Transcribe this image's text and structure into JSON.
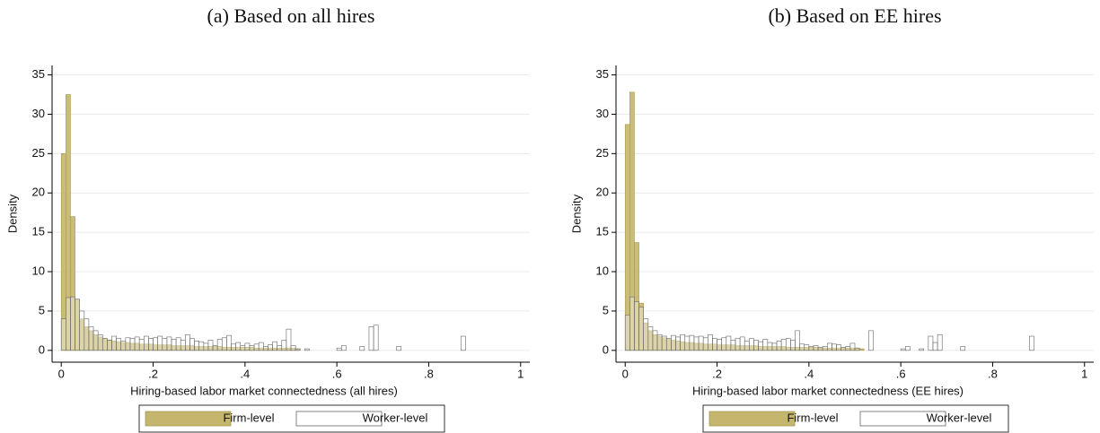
{
  "chart_data": [
    {
      "type": "histogram",
      "title": "(a) Based on all hires",
      "xlabel": "Hiring-based labor market connectedness (all hires)",
      "ylabel": "Density",
      "bins": [
        0,
        0.01,
        0.02,
        0.03,
        0.04,
        0.05,
        0.06,
        0.07,
        0.08,
        0.09,
        0.1,
        0.11,
        0.12,
        0.13,
        0.14,
        0.15,
        0.16,
        0.17,
        0.18,
        0.19,
        0.2,
        0.21,
        0.22,
        0.23,
        0.24,
        0.25,
        0.26,
        0.27,
        0.28,
        0.29,
        0.3,
        0.31,
        0.32,
        0.33,
        0.34,
        0.35,
        0.36,
        0.37,
        0.38,
        0.39,
        0.4,
        0.41,
        0.42,
        0.43,
        0.44,
        0.45,
        0.46,
        0.47,
        0.48,
        0.49,
        0.5,
        0.51,
        0.52,
        0.53,
        0.54,
        0.55,
        0.56,
        0.57,
        0.58,
        0.59,
        0.6,
        0.61,
        0.62,
        0.63,
        0.64,
        0.65,
        0.66,
        0.67,
        0.68,
        0.69,
        0.7,
        0.71,
        0.72,
        0.73,
        0.74,
        0.75,
        0.76,
        0.77,
        0.78,
        0.79,
        0.8,
        0.81,
        0.82,
        0.83,
        0.84,
        0.85,
        0.86,
        0.87,
        0.88,
        0.89,
        0.9
      ],
      "series": [
        {
          "name": "Firm-level",
          "color": "#c4b66c",
          "values": [
            25,
            32.5,
            17,
            6.5,
            4,
            3,
            2.5,
            2,
            1.7,
            1.5,
            1.3,
            1.2,
            1.1,
            1,
            1,
            0.9,
            0.9,
            0.8,
            0.8,
            0.8,
            0.7,
            0.7,
            0.7,
            0.7,
            0.6,
            0.6,
            0.6,
            0.6,
            0.6,
            0.5,
            0.5,
            0.5,
            0.5,
            0.5,
            0.5,
            0.4,
            0.4,
            0.4,
            0.4,
            0.4,
            0.4,
            0.4,
            0.3,
            0.3,
            0.3,
            0.3,
            0.3,
            0.3,
            0.3,
            0.3,
            0.3,
            0.2,
            0,
            0,
            0,
            0,
            0,
            0,
            0,
            0,
            0,
            0,
            0,
            0,
            0,
            0,
            0,
            0,
            0,
            0,
            0,
            0,
            0,
            0,
            0,
            0,
            0,
            0,
            0,
            0,
            0,
            0,
            0,
            0,
            0,
            0,
            0,
            0,
            0,
            0
          ]
        },
        {
          "name": "Worker-level",
          "color": "#ffffff",
          "values": [
            4,
            6.7,
            6.8,
            6.5,
            5,
            4,
            3,
            2.5,
            2,
            1.5,
            1.3,
            1.8,
            1.5,
            1.2,
            1.6,
            1.5,
            1.7,
            1.4,
            1.8,
            1.5,
            1.6,
            1.8,
            1.5,
            1.7,
            1.4,
            1.6,
            1.3,
            2,
            1.5,
            1.2,
            1.1,
            0.9,
            1.3,
            0.6,
            1.4,
            1.6,
            1.9,
            0.8,
            1,
            0.6,
            0.9,
            0.6,
            0.8,
            1,
            0.5,
            0.7,
            1.1,
            0.6,
            1.3,
            2.7,
            0.6,
            0.2,
            0,
            0.2,
            0,
            0,
            0,
            0,
            0,
            0,
            0.3,
            0.6,
            0,
            0,
            0,
            0.5,
            0,
            3,
            3.2,
            0,
            0,
            0,
            0,
            0.5,
            0,
            0,
            0,
            0,
            0,
            0,
            0,
            0,
            0,
            0,
            0,
            0,
            0,
            1.8,
            0,
            0
          ]
        }
      ],
      "xlim": [
        -0.02,
        1.02
      ],
      "ylim": [
        -1.5,
        36.2
      ],
      "xticks": [
        0,
        {
          "value": 0.2,
          "label": ".2"
        },
        {
          "value": 0.4,
          "label": ".4"
        },
        {
          "value": 0.6,
          "label": ".6"
        },
        {
          "value": 0.8,
          "label": ".8"
        },
        1
      ],
      "yticks": [
        0,
        5,
        10,
        15,
        20,
        25,
        30,
        35
      ],
      "grid": true,
      "legend": "bottom"
    },
    {
      "type": "histogram",
      "title": "(b) Based on EE hires",
      "xlabel": "Hiring-based labor market connectedness (EE hires)",
      "ylabel": "Density",
      "bins": [
        0,
        0.01,
        0.02,
        0.03,
        0.04,
        0.05,
        0.06,
        0.07,
        0.08,
        0.09,
        0.1,
        0.11,
        0.12,
        0.13,
        0.14,
        0.15,
        0.16,
        0.17,
        0.18,
        0.19,
        0.2,
        0.21,
        0.22,
        0.23,
        0.24,
        0.25,
        0.26,
        0.27,
        0.28,
        0.29,
        0.3,
        0.31,
        0.32,
        0.33,
        0.34,
        0.35,
        0.36,
        0.37,
        0.38,
        0.39,
        0.4,
        0.41,
        0.42,
        0.43,
        0.44,
        0.45,
        0.46,
        0.47,
        0.48,
        0.49,
        0.5,
        0.51,
        0.52,
        0.53,
        0.54,
        0.55,
        0.56,
        0.57,
        0.58,
        0.59,
        0.6,
        0.61,
        0.62,
        0.63,
        0.64,
        0.65,
        0.66,
        0.67,
        0.68,
        0.69,
        0.7,
        0.71,
        0.72,
        0.73,
        0.74,
        0.75,
        0.76,
        0.77,
        0.78,
        0.79,
        0.8,
        0.81,
        0.82,
        0.83,
        0.84,
        0.85,
        0.86,
        0.87,
        0.88,
        0.89,
        0.9
      ],
      "series": [
        {
          "name": "Firm-level",
          "color": "#c4b66c",
          "values": [
            28.7,
            32.8,
            13.7,
            6,
            3.5,
            2.5,
            2,
            1.8,
            1.6,
            1.4,
            1.3,
            1.2,
            1.1,
            1,
            1,
            0.9,
            0.9,
            0.8,
            0.8,
            0.8,
            0.7,
            0.7,
            0.7,
            0.7,
            0.6,
            0.6,
            0.6,
            0.6,
            0.6,
            0.5,
            0.5,
            0.5,
            0.5,
            0.5,
            0.5,
            0.4,
            0.4,
            0.4,
            0.4,
            0.4,
            0.4,
            0.4,
            0.3,
            0.3,
            0.3,
            0.3,
            0.3,
            0.3,
            0.3,
            0.3,
            0.3,
            0.2,
            0,
            0,
            0,
            0,
            0,
            0,
            0,
            0,
            0,
            0,
            0,
            0,
            0,
            0,
            0,
            0,
            0,
            0,
            0,
            0,
            0,
            0,
            0,
            0,
            0,
            0,
            0,
            0,
            0,
            0,
            0,
            0,
            0,
            0,
            0,
            0,
            0,
            0
          ]
        },
        {
          "name": "Worker-level",
          "color": "#ffffff",
          "values": [
            4.5,
            6.8,
            6.2,
            5.5,
            4,
            3,
            2.5,
            2,
            1.8,
            1.5,
            1.9,
            1.7,
            2,
            1.8,
            1.9,
            1.7,
            1.8,
            1.6,
            2,
            1.5,
            1.4,
            1.6,
            1.8,
            1.3,
            1.5,
            1.7,
            1.2,
            1.5,
            1.3,
            1.1,
            1.4,
            1,
            0.9,
            1.2,
            1.4,
            1.5,
            1.3,
            2.5,
            0.8,
            0.7,
            0.5,
            0.6,
            0.4,
            0.5,
            0.9,
            0.8,
            0.7,
            0.4,
            0.5,
            0.9,
            0.3,
            0,
            0,
            2.5,
            0,
            0,
            0,
            0,
            0,
            0,
            0.2,
            0.5,
            0,
            0,
            0.2,
            0,
            1.8,
            1,
            2,
            0,
            0,
            0,
            0,
            0.5,
            0,
            0,
            0,
            0,
            0,
            0,
            0,
            0,
            0,
            0,
            0,
            0,
            0,
            0,
            1.8,
            0
          ]
        }
      ],
      "xlim": [
        -0.02,
        1.02
      ],
      "ylim": [
        -1.5,
        36.2
      ],
      "xticks": [
        0,
        {
          "value": 0.2,
          "label": ".2"
        },
        {
          "value": 0.4,
          "label": ".4"
        },
        {
          "value": 0.6,
          "label": ".6"
        },
        {
          "value": 0.8,
          "label": ".8"
        },
        1
      ],
      "yticks": [
        0,
        5,
        10,
        15,
        20,
        25,
        30,
        35
      ],
      "grid": true,
      "legend": "bottom"
    }
  ]
}
